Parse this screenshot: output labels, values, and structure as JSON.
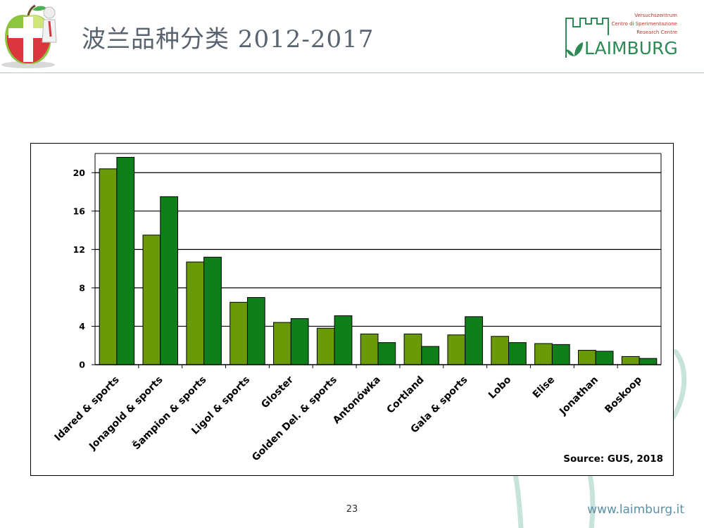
{
  "header": {
    "title": "波兰品种分类  2012-2017",
    "brand": {
      "line1": "Versuchszentrum",
      "line2": "Centro di Sperimentazione",
      "line3": "Research Centre",
      "name": "LAIMBURG",
      "color": "#2c8a54"
    }
  },
  "chart_data": {
    "type": "bar",
    "categories": [
      "Idared & sports",
      "Jonagold & sports",
      "Šampion & sports",
      "Ligol & sports",
      "Gloster",
      "Golden Del. & sports",
      "Antonówka",
      "Cortland",
      "Gala & sports",
      "Lobo",
      "Elise",
      "Jonathan",
      "Boskoop"
    ],
    "series": [
      {
        "color": "#6a9a08",
        "values": [
          20.4,
          13.5,
          10.7,
          6.5,
          4.4,
          3.8,
          3.2,
          3.2,
          3.1,
          2.95,
          2.2,
          1.5,
          0.85
        ]
      },
      {
        "color": "#0f7f1a",
        "values": [
          21.6,
          17.5,
          11.2,
          7.0,
          4.8,
          5.1,
          2.3,
          1.9,
          5.0,
          2.3,
          2.1,
          1.4,
          0.65
        ]
      }
    ],
    "ylim": [
      0,
      22
    ],
    "yticks": [
      0,
      4,
      8,
      12,
      16,
      20
    ],
    "grid": true,
    "source": "Source: GUS, 2018"
  },
  "footer": {
    "page_number": "23",
    "website": "www.laimburg.it"
  }
}
